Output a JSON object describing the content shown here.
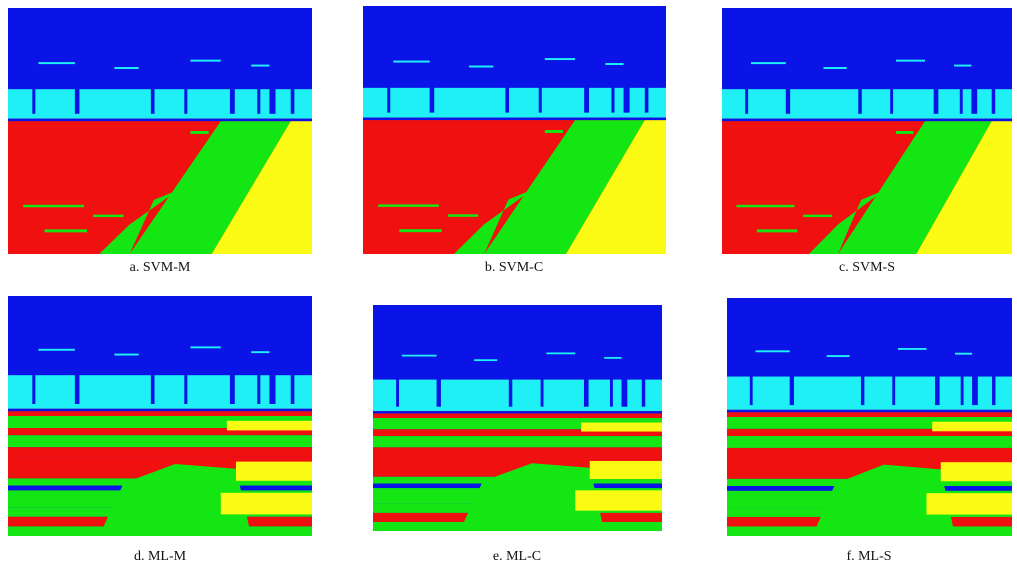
{
  "figure": {
    "panels": [
      {
        "caption": "a. SVM-M"
      },
      {
        "caption": "b. SVM-C"
      },
      {
        "caption": "c. SVM-S"
      },
      {
        "caption": "d. ML-M"
      },
      {
        "caption": "e. ML-C"
      },
      {
        "caption": "f. ML-S"
      }
    ]
  }
}
